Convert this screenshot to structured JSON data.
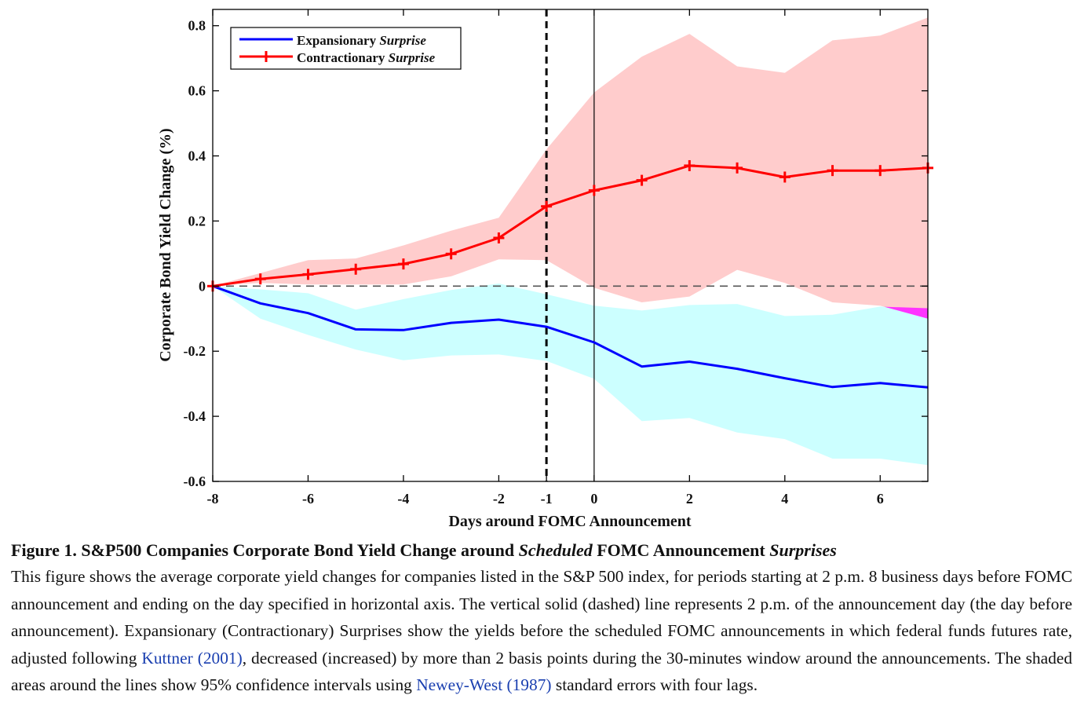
{
  "chart_data": {
    "type": "line",
    "xlabel": "Days around FOMC Announcement",
    "ylabel": "Corporate Bond Yield Change (%)",
    "xlim": [
      -8,
      7
    ],
    "ylim": [
      -0.6,
      0.85
    ],
    "x_ticks": [
      -8,
      -6,
      -4,
      -2,
      -1,
      0,
      2,
      4,
      6
    ],
    "x_tick_labels": [
      "-8",
      "-6",
      "-4",
      "-2",
      "-1",
      "0",
      "2",
      "4",
      "6"
    ],
    "y_ticks": [
      0.8,
      0.6,
      0.4,
      0.2,
      0,
      -0.2,
      -0.4,
      -0.6
    ],
    "y_tick_labels": [
      "0.8",
      "0.6",
      "0.4",
      "0.2",
      "0",
      "-0.2",
      "-0.4",
      "-0.6"
    ],
    "x": [
      -8,
      -7,
      -6,
      -5,
      -4,
      -3,
      -2,
      -1,
      0,
      1,
      2,
      3,
      4,
      5,
      6,
      7
    ],
    "series": [
      {
        "name": "Expansionary Surprise",
        "name_plain": "Expansionary ",
        "name_italic": "Surprise",
        "color": "#0000ff",
        "marker": "none",
        "values": [
          0,
          -0.053,
          -0.083,
          -0.133,
          -0.135,
          -0.113,
          -0.103,
          -0.125,
          -0.173,
          -0.247,
          -0.232,
          -0.254,
          -0.283,
          -0.31,
          -0.298,
          -0.311
        ],
        "ci_lower": [
          0,
          -0.1,
          -0.15,
          -0.195,
          -0.228,
          -0.213,
          -0.21,
          -0.23,
          -0.285,
          -0.415,
          -0.405,
          -0.45,
          -0.47,
          -0.53,
          -0.53,
          -0.55
        ],
        "ci_upper": [
          0,
          -0.01,
          -0.022,
          -0.072,
          -0.04,
          -0.012,
          0.008,
          -0.025,
          -0.06,
          -0.075,
          -0.058,
          -0.055,
          -0.092,
          -0.088,
          -0.063,
          -0.068
        ],
        "fill_color": "#ccffff"
      },
      {
        "name": "Contractionary Surprise",
        "name_plain": "Contractionary ",
        "name_italic": "Surprise",
        "color": "#ff0000",
        "marker": "+",
        "values": [
          0,
          0.022,
          0.036,
          0.052,
          0.068,
          0.099,
          0.148,
          0.245,
          0.294,
          0.325,
          0.37,
          0.363,
          0.335,
          0.355,
          0.355,
          0.363
        ],
        "ci_lower": [
          0,
          0.01,
          0.005,
          0.005,
          0.005,
          0.03,
          0.082,
          0.08,
          -0.005,
          -0.05,
          -0.032,
          0.05,
          0.01,
          -0.05,
          -0.06,
          -0.1
        ],
        "ci_upper": [
          0,
          0.04,
          0.08,
          0.085,
          0.125,
          0.17,
          0.21,
          0.42,
          0.595,
          0.705,
          0.775,
          0.675,
          0.655,
          0.755,
          0.77,
          0.825
        ],
        "fill_color": "#ffcccc"
      }
    ],
    "overlap_color": "#ff33ff",
    "reference_lines": [
      {
        "axis": "x",
        "value": -1,
        "style": "dashed",
        "label": "day before announcement"
      },
      {
        "axis": "x",
        "value": 0,
        "style": "solid",
        "label": "announcement day"
      },
      {
        "axis": "y",
        "value": 0,
        "style": "dashed",
        "label": "zero"
      }
    ],
    "legend_position": "top-left"
  },
  "caption": {
    "title_part1": "Figure 1. S&P500 Companies Corporate Bond Yield Change around ",
    "title_italic1": "Scheduled",
    "title_part2": " FOMC Announcement ",
    "title_italic2": "Surprises",
    "body_part1": "This figure shows the average corporate yield changes for companies listed in the S&P 500 index, for periods starting at 2 p.m. 8 business days before FOMC announcement and ending on the day specified in horizontal axis. The vertical solid (dashed) line represents 2 p.m. of the announcement day (the day before announcement). Expansionary (Contractionary) Surprises show the yields before the scheduled FOMC announcements in which federal funds futures rate, adjusted following ",
    "ref1": "Kuttner (2001)",
    "body_part2": ", decreased (increased) by more than 2 basis points during the 30-minutes window around the announcements. The shaded areas around the lines show 95% confidence intervals using ",
    "ref2": "Newey-West (1987)",
    "body_part3": " standard errors with four lags."
  }
}
